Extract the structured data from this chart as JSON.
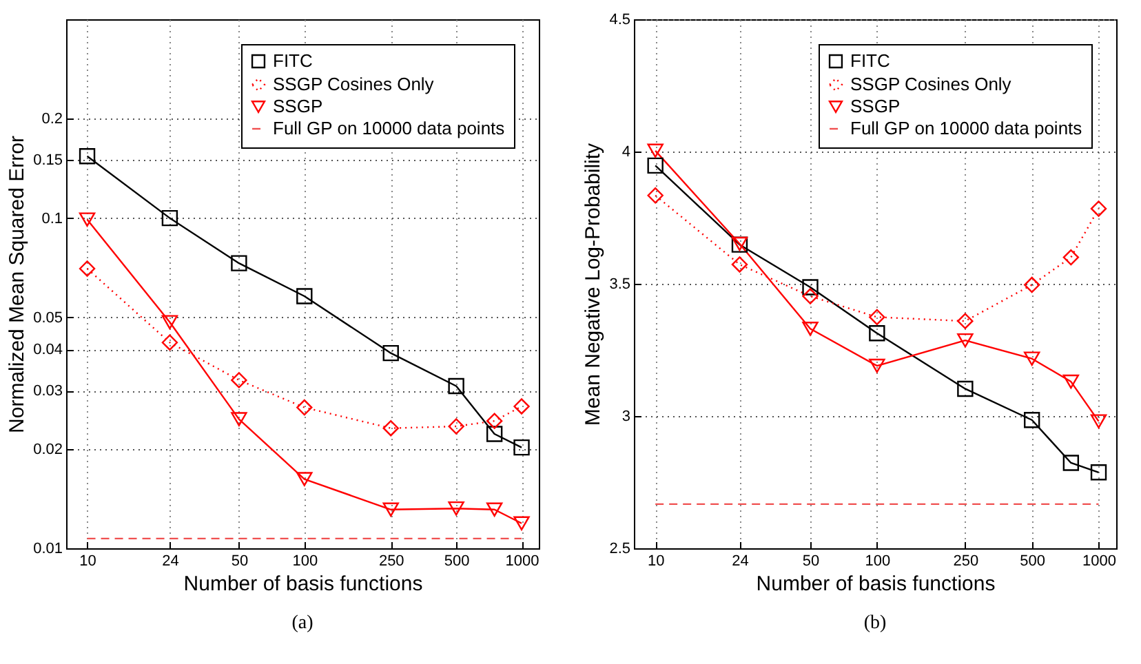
{
  "chart_data": [
    {
      "type": "line",
      "xlabel": "Number of basis functions",
      "ylabel": "Normalized Mean Squared Error",
      "annotations": [
        "(a)"
      ],
      "log": "xy",
      "grid": true,
      "legend": "top right",
      "xlim": [
        8,
        1200
      ],
      "xticks": [
        10,
        24,
        50,
        100,
        250,
        500,
        1000
      ],
      "ylim": [
        0.01,
        0.4
      ],
      "yticks": [
        0.01,
        0.02,
        0.03,
        0.04,
        0.05,
        0.1,
        0.15,
        0.2
      ],
      "series": [
        {
          "name": "FITC",
          "color": "#000000",
          "marker": "square",
          "line_style": "solid",
          "x": [
            10,
            24,
            50,
            100,
            250,
            500,
            750,
            1000
          ],
          "values": [
            0.154,
            0.1,
            0.073,
            0.058,
            0.039,
            0.031,
            0.0222,
            0.0202
          ]
        },
        {
          "name": "SSGP Cosines Only",
          "color": "#ff0000",
          "marker": "diamond",
          "line_style": "dotted",
          "x": [
            10,
            24,
            50,
            100,
            250,
            500,
            750,
            1000
          ],
          "values": [
            0.0703,
            0.042,
            0.0323,
            0.0267,
            0.0231,
            0.0234,
            0.0243,
            0.0269
          ]
        },
        {
          "name": "SSGP",
          "color": "#ff0000",
          "marker": "triangle",
          "line_style": "solid",
          "x": [
            10,
            24,
            50,
            100,
            250,
            500,
            750,
            1000
          ],
          "values": [
            0.099,
            0.0484,
            0.0246,
            0.0162,
            0.0131,
            0.0132,
            0.0131,
            0.0119
          ]
        },
        {
          "name": "Full GP on 10000 data points",
          "color": "#f05050",
          "marker": "none",
          "line_style": "dashed",
          "x": [
            10,
            1000
          ],
          "values": [
            0.0107,
            0.0107
          ]
        }
      ]
    },
    {
      "type": "line",
      "xlabel": "Number of basis functions",
      "ylabel": "Mean Negative Log-Probability",
      "annotations": [
        "(b)"
      ],
      "log": "x",
      "grid": true,
      "legend": "top right",
      "xlim": [
        8,
        1200
      ],
      "xticks": [
        10,
        24,
        50,
        100,
        250,
        500,
        1000
      ],
      "ylim": [
        2.5,
        4.5
      ],
      "yticks": [
        2.5,
        3,
        3.5,
        4,
        4.5
      ],
      "series": [
        {
          "name": "FITC",
          "color": "#000000",
          "marker": "square",
          "line_style": "solid",
          "x": [
            10,
            24,
            50,
            100,
            250,
            500,
            750,
            1000
          ],
          "values": [
            3.947,
            3.648,
            3.487,
            3.313,
            3.103,
            2.985,
            2.823,
            2.787
          ]
        },
        {
          "name": "SSGP Cosines Only",
          "color": "#ff0000",
          "marker": "diamond",
          "line_style": "dotted",
          "x": [
            10,
            24,
            50,
            100,
            250,
            500,
            750,
            1000
          ],
          "values": [
            3.834,
            3.573,
            3.453,
            3.374,
            3.359,
            3.496,
            3.6,
            3.784
          ]
        },
        {
          "name": "SSGP",
          "color": "#ff0000",
          "marker": "triangle",
          "line_style": "solid",
          "x": [
            10,
            24,
            50,
            100,
            250,
            500,
            750,
            1000
          ],
          "values": [
            4.003,
            3.651,
            3.33,
            3.19,
            3.286,
            3.217,
            3.13,
            2.98
          ]
        },
        {
          "name": "Full GP on 10000 data points",
          "color": "#f05050",
          "marker": "none",
          "line_style": "dashed",
          "x": [
            10,
            1000
          ],
          "values": [
            2.667,
            2.667
          ]
        }
      ]
    }
  ]
}
